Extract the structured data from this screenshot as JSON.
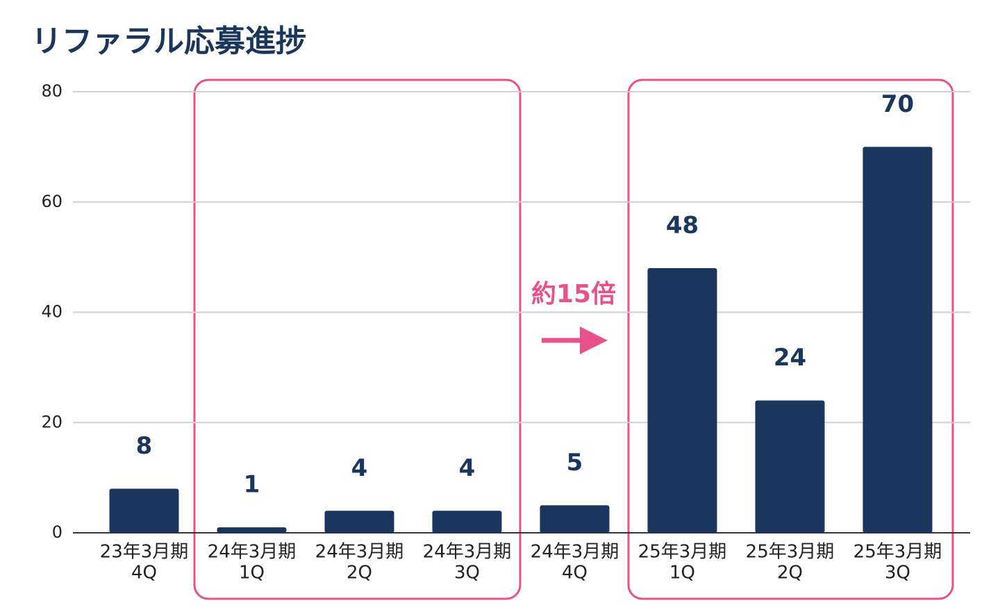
{
  "chart_data": {
    "type": "bar",
    "title": "リファラル応募進捗",
    "categories": [
      [
        "23年3月期",
        "4Q"
      ],
      [
        "24年3月期",
        "1Q"
      ],
      [
        "24年3月期",
        "2Q"
      ],
      [
        "24年3月期",
        "3Q"
      ],
      [
        "24年3月期",
        "4Q"
      ],
      [
        "25年3月期",
        "1Q"
      ],
      [
        "25年3月期",
        "2Q"
      ],
      [
        "25年3月期",
        "3Q"
      ]
    ],
    "values": [
      8,
      1,
      4,
      4,
      5,
      48,
      24,
      70
    ],
    "color": "#1b365d",
    "ylim": [
      0,
      80
    ],
    "yticks": [
      0,
      20,
      40,
      60,
      80
    ],
    "grid": true,
    "annotation": "約15倍"
  }
}
